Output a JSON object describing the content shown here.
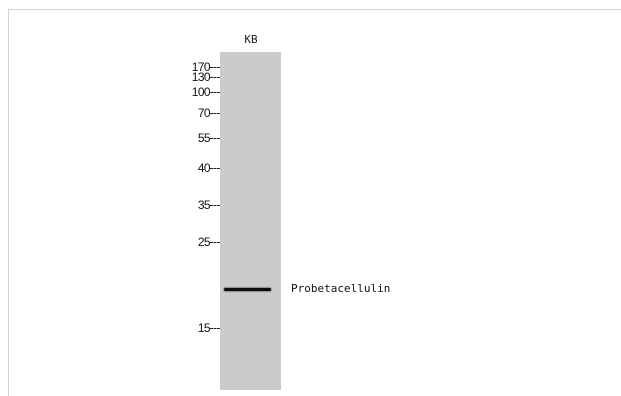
{
  "blot": {
    "lane_label": "KB",
    "band_label": "Probetacellulin",
    "markers": [
      "170",
      "130",
      "100",
      "70",
      "55",
      "40",
      "35",
      "25",
      "15"
    ],
    "colors": {
      "lane_background": "#cbcbcb",
      "band": "#0d0d0d",
      "frame": "#d4d4d4"
    }
  }
}
